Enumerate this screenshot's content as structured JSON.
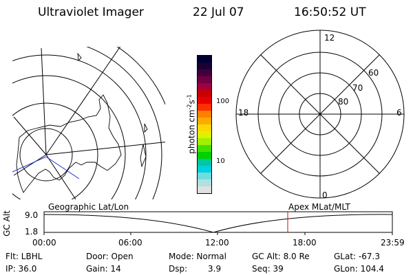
{
  "header": {
    "title": "Ultraviolet Imager",
    "date": "22 Jul 07",
    "time": "16:50:52 UT"
  },
  "colorbar": {
    "label": "photon cm",
    "label_exp1": "-2",
    "label_s": "s",
    "label_exp2": "-1",
    "tick_high": "100",
    "tick_low": "10",
    "colors": [
      "#000033",
      "#1a0033",
      "#400040",
      "#700040",
      "#a00040",
      "#c80000",
      "#e80000",
      "#ff3000",
      "#ff8000",
      "#ffaa00",
      "#ffd700",
      "#e0f000",
      "#a0f000",
      "#40e000",
      "#00d000",
      "#00c8a0",
      "#00d0e0",
      "#70dce0",
      "#b0e0e0",
      "#e0e0e0"
    ]
  },
  "polar_plot": {
    "labels": {
      "top": "12",
      "right": "6",
      "bottom": "0",
      "left": "18"
    },
    "lat_labels": [
      "60",
      "70",
      "80"
    ]
  },
  "timeline": {
    "y_axis_label": "GC Alt",
    "y_high": "9.0",
    "y_low": "1.8",
    "left_title": "Geographic Lat/Lon",
    "right_title": "Apex MLat/MLT",
    "ticks": [
      "00:00",
      "06:00",
      "12:00",
      "18:00",
      "23:59"
    ],
    "marker_color": "#e00000"
  },
  "info": {
    "filter": "Flt: LBHL",
    "ip": "IP: 36.0",
    "door": "Door: Open",
    "gain": "Gain: 14",
    "mode": "Mode: Normal",
    "dsp_label": "Dsp:",
    "dsp_value": "3.9",
    "gc_alt": "GC Alt: 8.0 Re",
    "seq": "Seq: 39",
    "glat": "GLat: -67.3",
    "glon": "GLon: 104.4"
  }
}
